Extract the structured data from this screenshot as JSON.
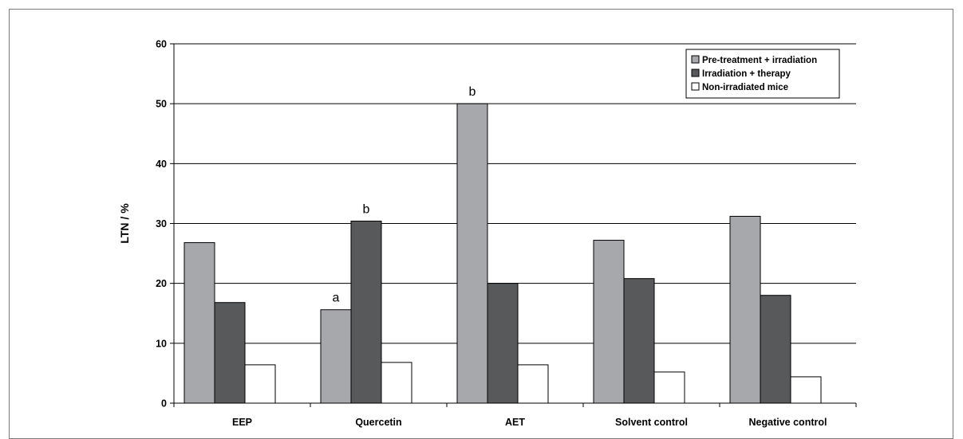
{
  "chart_data": {
    "type": "bar",
    "title": "",
    "xlabel": "",
    "ylabel": "LTN / %",
    "ylim": [
      0,
      60
    ],
    "yticks": [
      0,
      10,
      20,
      30,
      40,
      50,
      60
    ],
    "grid": true,
    "legend_position": "top-right",
    "categories": [
      "EEP",
      "Quercetin",
      "AET",
      "Solvent control",
      "Negative control"
    ],
    "series": [
      {
        "name": "Pre-treatment + irradiation",
        "color": "#a6a8ab",
        "values": [
          26.8,
          15.6,
          50.0,
          27.2,
          31.2
        ]
      },
      {
        "name": "Irradiation + therapy",
        "color": "#58595b",
        "values": [
          16.8,
          30.4,
          20.0,
          20.8,
          18.0
        ]
      },
      {
        "name": "Non-irradiated mice",
        "color": "#ffffff",
        "values": [
          6.4,
          6.8,
          6.4,
          5.2,
          4.4
        ]
      }
    ],
    "annotations": [
      {
        "text": "a",
        "category": "Quercetin",
        "series": "Pre-treatment + irradiation"
      },
      {
        "text": "b",
        "category": "Quercetin",
        "series": "Irradiation + therapy"
      },
      {
        "text": "b",
        "category": "AET",
        "series": "Pre-treatment + irradiation"
      }
    ]
  }
}
